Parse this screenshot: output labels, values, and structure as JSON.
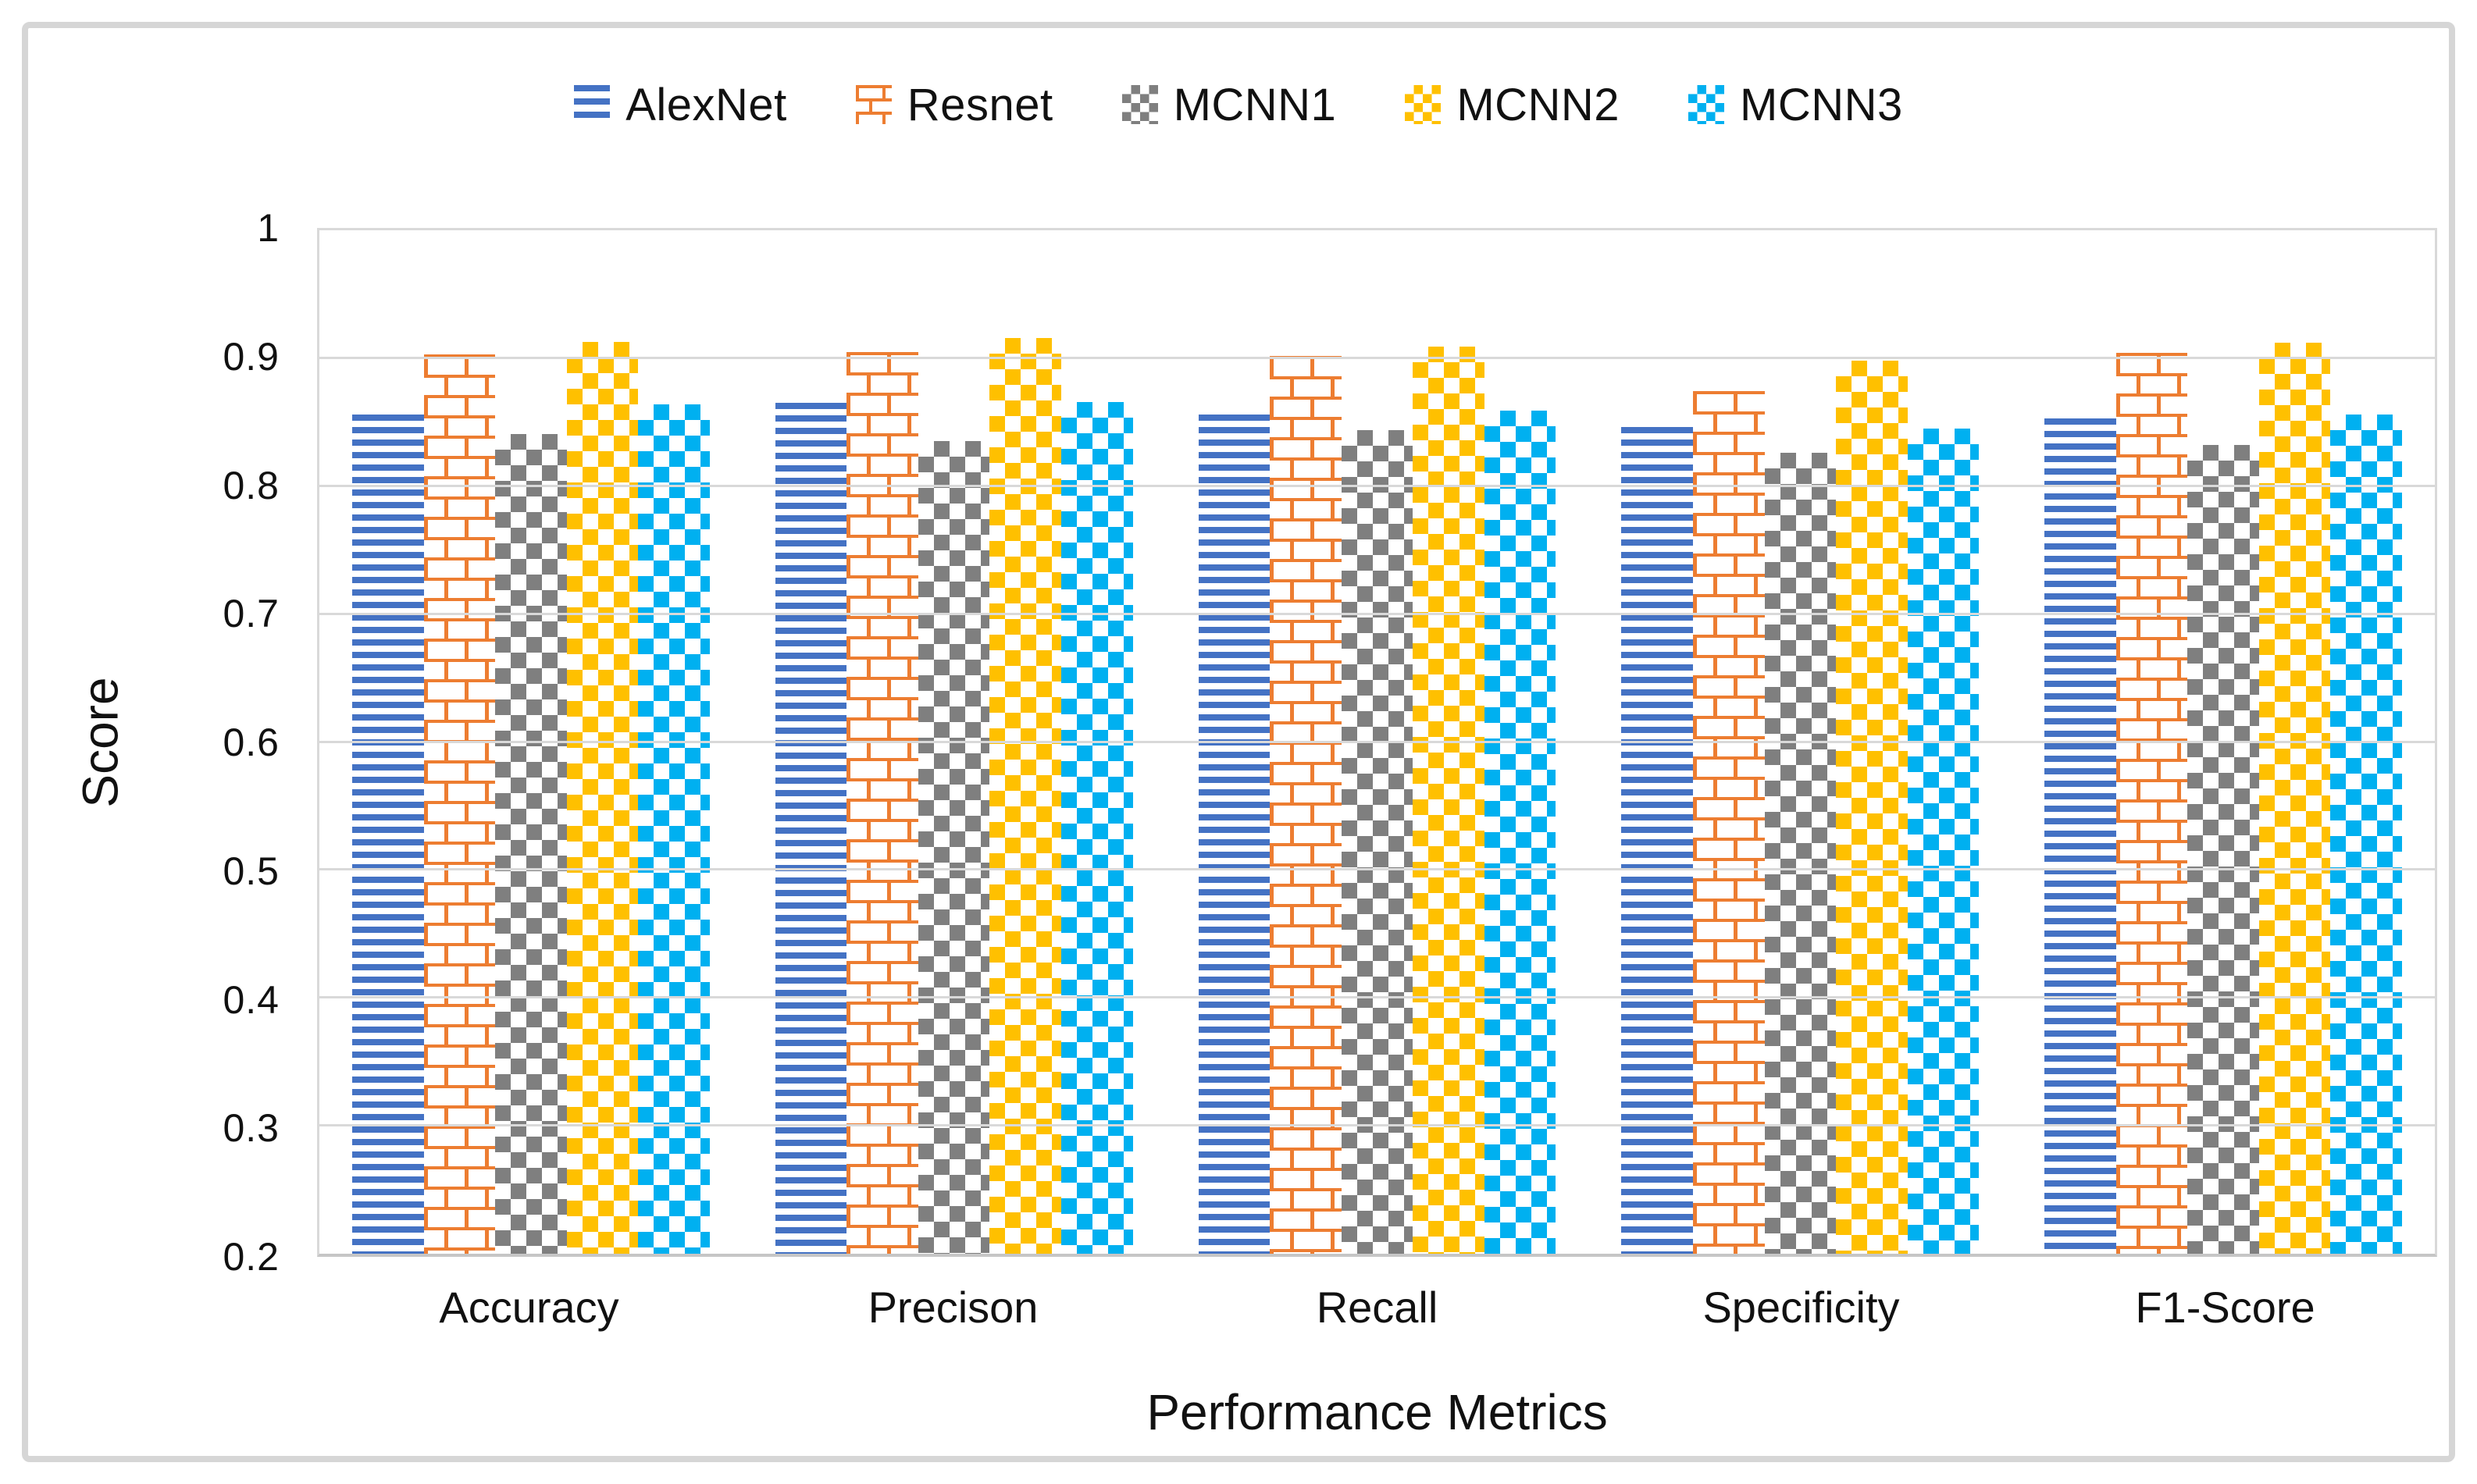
{
  "chart_data": {
    "type": "bar",
    "title": "",
    "categories": [
      "Accuracy",
      "Precison",
      "Recall",
      "Specificity",
      "F1-Score"
    ],
    "series": [
      {
        "name": "AlexNet",
        "color": "#4472C4",
        "pattern": "hstripes",
        "values": [
          0.856,
          0.865,
          0.856,
          0.846,
          0.853
        ]
      },
      {
        "name": "Resnet",
        "color": "#ED7D31",
        "pattern": "brick",
        "values": [
          0.903,
          0.905,
          0.902,
          0.874,
          0.904
        ]
      },
      {
        "name": "MCNN1",
        "color": "#7F7F7F",
        "pattern": "checker",
        "values": [
          0.841,
          0.835,
          0.844,
          0.826,
          0.832
        ]
      },
      {
        "name": "MCNN2",
        "color": "#FFC000",
        "pattern": "checker",
        "values": [
          0.913,
          0.916,
          0.909,
          0.898,
          0.912
        ]
      },
      {
        "name": "MCNN3",
        "color": "#00B0F0",
        "pattern": "checker",
        "values": [
          0.864,
          0.866,
          0.859,
          0.845,
          0.856
        ]
      }
    ],
    "xlabel": "Performance Metrics",
    "ylabel": "Score",
    "ylim": [
      0.2,
      1.0
    ],
    "ytick_labels": [
      "0.2",
      "0.3",
      "0.4",
      "0.5",
      "0.6",
      "0.7",
      "0.8",
      "0.9",
      "1"
    ],
    "grid": true,
    "legend_position": "top",
    "gridline_color": "#d9d9d9"
  },
  "y_axis": {
    "title": "Score"
  },
  "x_axis": {
    "title": "Performance Metrics"
  }
}
